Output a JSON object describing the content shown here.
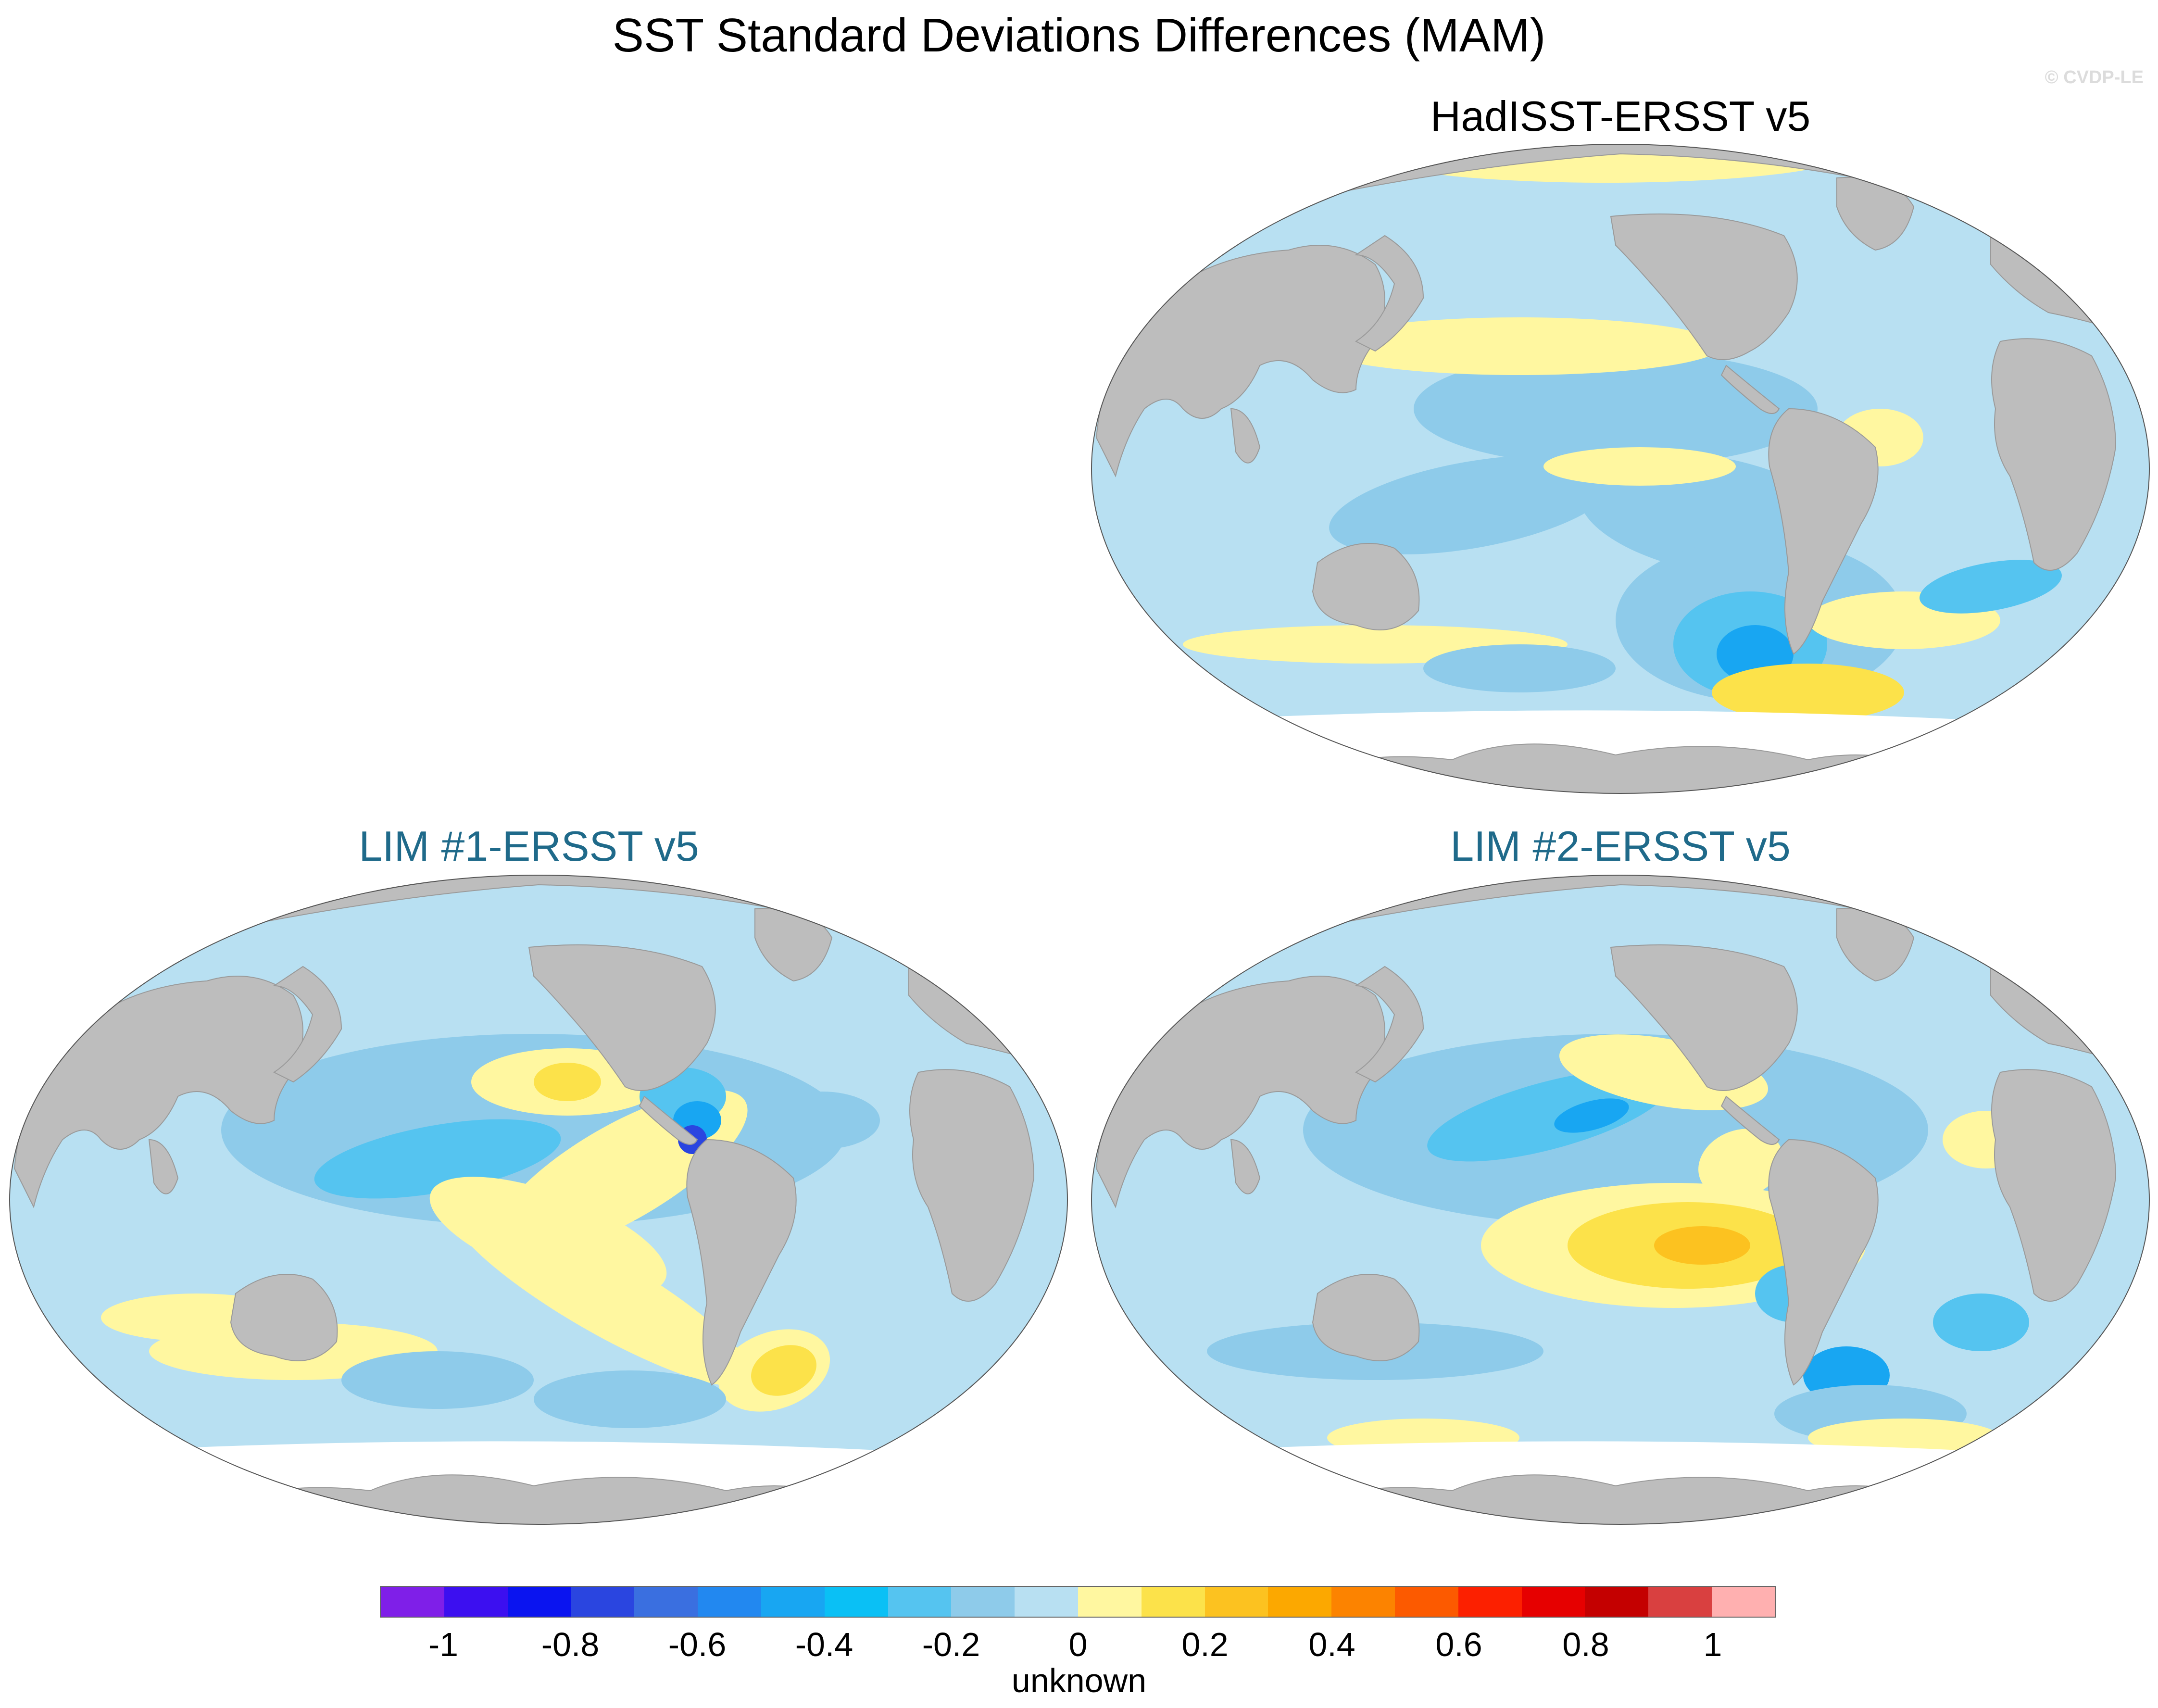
{
  "figure": {
    "title": "SST Standard Deviations Differences (MAM)",
    "watermark": "© CVDP-LE"
  },
  "panels": [
    {
      "id": "had",
      "title": "HadISST-ERSST v5",
      "title_color": "#000000"
    },
    {
      "id": "lim1",
      "title": "LIM #1-ERSST v5",
      "title_color": "#1f6a8a"
    },
    {
      "id": "lim2",
      "title": "LIM #2-ERSST v5",
      "title_color": "#1f6a8a"
    }
  ],
  "colorbar": {
    "colors": [
      "#7f1fe8",
      "#3c0ff0",
      "#0a14f0",
      "#2a45e0",
      "#3a6fe0",
      "#2288f0",
      "#18a6f2",
      "#0ac0f5",
      "#55c4f0",
      "#8ecbea",
      "#b8e0f2",
      "#fff7a0",
      "#fce24a",
      "#fcc220",
      "#fca800",
      "#fc8300",
      "#fc5a00",
      "#fc2000",
      "#e60000",
      "#c40000",
      "#d94040",
      "#ffb0b0"
    ],
    "tick_labels": [
      "-1",
      "-0.8",
      "-0.6",
      "-0.4",
      "-0.2",
      "0",
      "0.2",
      "0.4",
      "0.6",
      "0.8",
      "1"
    ],
    "units": "unknown"
  }
}
